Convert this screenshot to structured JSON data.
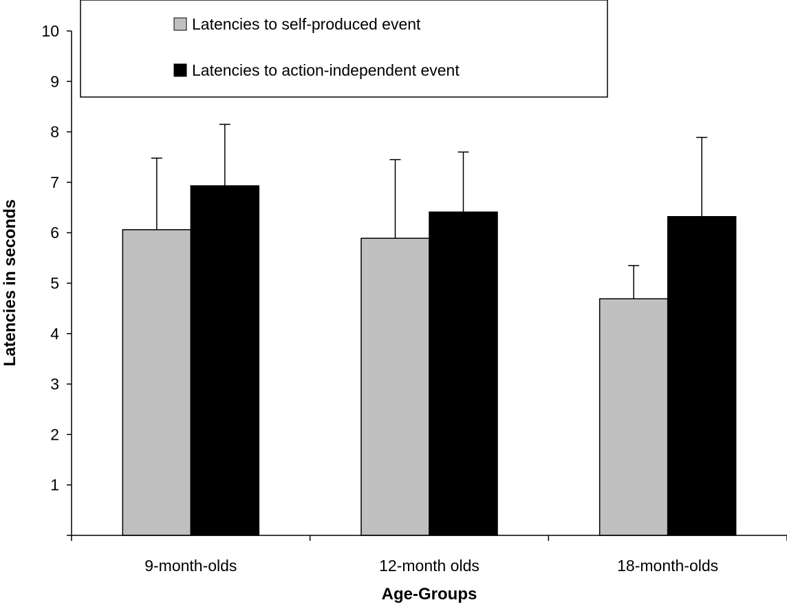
{
  "chart_data": {
    "type": "bar",
    "title": "",
    "xlabel": "Age-Groups",
    "ylabel": "Latencies in seconds",
    "ylim": [
      0,
      10
    ],
    "yticks": [
      1,
      2,
      3,
      4,
      5,
      6,
      7,
      8,
      9,
      10
    ],
    "grid": false,
    "legend_position": "top",
    "categories": [
      "9-month-olds",
      "12-month olds",
      "18-month-olds"
    ],
    "series": [
      {
        "name": "Latencies to self-produced event",
        "color": "#c0c0c0",
        "values": [
          6.06,
          5.89,
          4.69
        ],
        "error": [
          1.42,
          1.56,
          0.66
        ]
      },
      {
        "name": "Latencies to action-independent event",
        "color": "#000000",
        "values": [
          6.93,
          6.41,
          6.32
        ],
        "error": [
          1.22,
          1.19,
          1.57
        ]
      }
    ]
  }
}
